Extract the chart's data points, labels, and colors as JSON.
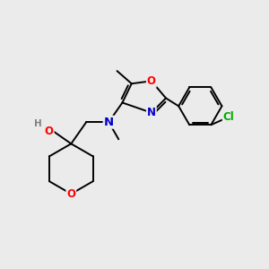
{
  "background_color": "#ebebeb",
  "atom_colors": {
    "C": "#000000",
    "N": "#0000cc",
    "O": "#ff0000",
    "Cl": "#00aa00",
    "H": "#808080"
  },
  "bond_color": "#000000",
  "figure_size": [
    3.0,
    3.0
  ],
  "dpi": 100,
  "bond_lw": 1.4,
  "font_size_atom": 8.5,
  "font_size_small": 7.5
}
